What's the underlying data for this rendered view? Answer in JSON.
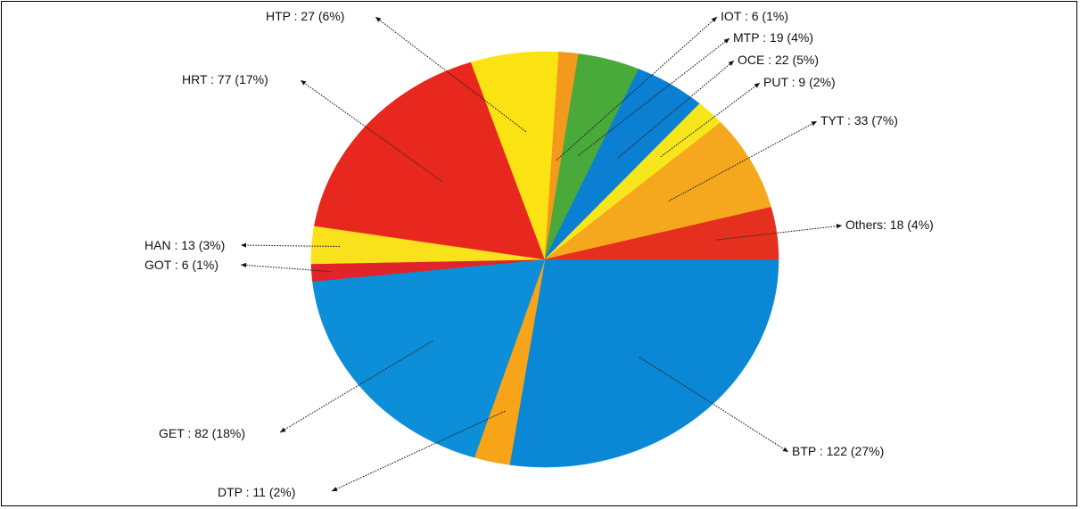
{
  "chart_data": {
    "type": "pie",
    "start_angle_deg": 0,
    "direction": "clockwise",
    "slices": [
      {
        "name": "BTP",
        "value": 122,
        "percent": 27,
        "label": "BTP : 122 (27%)",
        "color": "#0a88d6"
      },
      {
        "name": "DTP",
        "value": 11,
        "percent": 2,
        "label": "DTP : 11 (2%)",
        "color": "#f7a419"
      },
      {
        "name": "GET",
        "value": 82,
        "percent": 18,
        "label": "GET : 82 (18%)",
        "color": "#0c8fd8"
      },
      {
        "name": "GOT",
        "value": 6,
        "percent": 1,
        "label": "GOT : 6 (1%)",
        "color": "#e0242a"
      },
      {
        "name": "HAN",
        "value": 13,
        "percent": 3,
        "label": "HAN : 13 (3%)",
        "color": "#f9e11c"
      },
      {
        "name": "HRT",
        "value": 77,
        "percent": 17,
        "label": "HRT : 77 (17%)",
        "color": "#e8281f"
      },
      {
        "name": "HTP",
        "value": 27,
        "percent": 6,
        "label": "HTP : 27 (6%)",
        "color": "#fbe313"
      },
      {
        "name": "IOT",
        "value": 6,
        "percent": 1,
        "label": "IOT : 6 (1%)",
        "color": "#f39a1c"
      },
      {
        "name": "MTP",
        "value": 19,
        "percent": 4,
        "label": "MTP : 19 (4%)",
        "color": "#4aa93b"
      },
      {
        "name": "OCE",
        "value": 22,
        "percent": 5,
        "label": "OCE : 22 (5%)",
        "color": "#0b7fd2"
      },
      {
        "name": "PUT",
        "value": 9,
        "percent": 2,
        "label": "PUT : 9 (2%)",
        "color": "#f8e61d"
      },
      {
        "name": "TYT",
        "value": 33,
        "percent": 7,
        "label": "TYT : 33 (7%)",
        "color": "#f5a81d"
      },
      {
        "name": "Others",
        "value": 18,
        "percent": 4,
        "label": "Others: 18 (4%)",
        "color": "#e6301f"
      }
    ]
  }
}
